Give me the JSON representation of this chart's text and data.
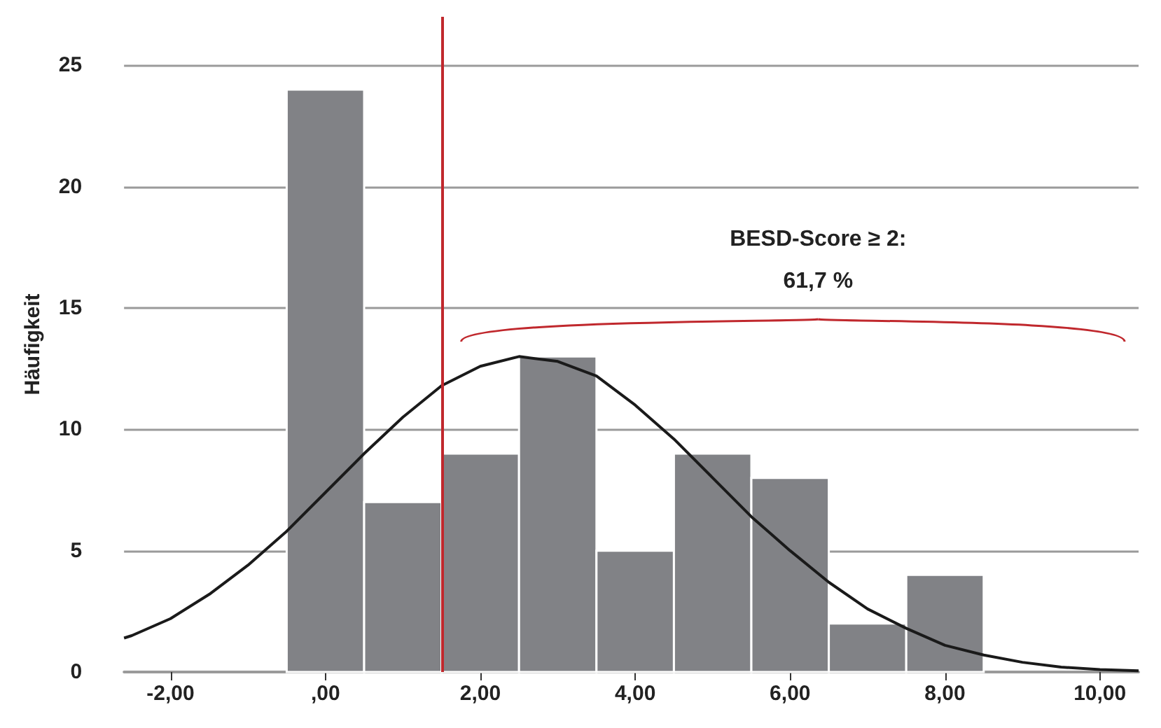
{
  "chart_data": {
    "type": "histogram",
    "ylabel": "Häufigkeit",
    "bins": [
      -0.5,
      0.5,
      1.5,
      2.5,
      3.5,
      4.5,
      5.5,
      6.5,
      7.5,
      8.5
    ],
    "values": [
      24,
      7,
      9,
      13,
      5,
      9,
      8,
      2,
      4
    ],
    "color": "#818286",
    "series": [
      {
        "type": "line",
        "color": "#1a1a1a",
        "x": [
          -2.6,
          -2.5,
          -2,
          -1.5,
          -1,
          -0.5,
          0,
          0.5,
          1,
          1.5,
          2,
          2.5,
          3,
          3.5,
          4,
          4.5,
          5,
          5.5,
          6,
          6.5,
          7,
          7.5,
          8,
          8.5,
          9,
          9.5,
          10,
          10.5
        ],
        "values": [
          1.4,
          1.5,
          2.2,
          3.2,
          4.4,
          5.8,
          7.4,
          9.0,
          10.5,
          11.8,
          12.6,
          13.0,
          12.8,
          12.2,
          11.0,
          9.6,
          8.0,
          6.4,
          5.0,
          3.7,
          2.6,
          1.8,
          1.1,
          0.7,
          0.4,
          0.2,
          0.1,
          0.05
        ]
      }
    ],
    "xlim": [
      -2.6,
      10.5
    ],
    "xticks": [
      {
        "value": -2,
        "label": "-2,00"
      },
      {
        "value": 0,
        "label": ",00"
      },
      {
        "value": 2,
        "label": "2,00"
      },
      {
        "value": 4,
        "label": "4,00"
      },
      {
        "value": 6,
        "label": "6,00"
      },
      {
        "value": 8,
        "label": "8,00"
      },
      {
        "value": 10,
        "label": "10,00"
      }
    ],
    "ylim": [
      0,
      27
    ],
    "yticks": [
      0,
      5,
      10,
      15,
      20,
      25
    ],
    "grid": "y",
    "ref_lines": [
      {
        "axis": "x",
        "value": 1.5,
        "color": "#c0282d"
      }
    ],
    "annotations": [
      "BESD-Score ≥ 2:\n61,7 %"
    ]
  }
}
